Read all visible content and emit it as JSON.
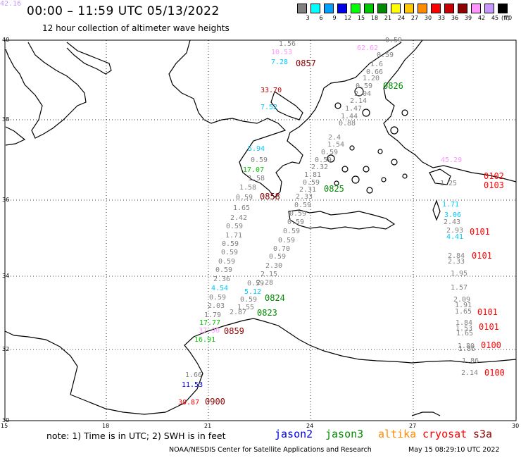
{
  "title": "00:00 – 11:59 UTC 05/13/2022",
  "subtitle": "12 hour collection of altimeter wave heights",
  "legend": {
    "unit": "(ft)",
    "bins": [
      {
        "label": "3",
        "color": "#808080"
      },
      {
        "label": "6",
        "color": "#00ffff"
      },
      {
        "label": "9",
        "color": "#00a0ff"
      },
      {
        "label": "12",
        "color": "#0000e6"
      },
      {
        "label": "15",
        "color": "#00ff00"
      },
      {
        "label": "18",
        "color": "#00c800"
      },
      {
        "label": "21",
        "color": "#008c00"
      },
      {
        "label": "24",
        "color": "#ffff00"
      },
      {
        "label": "27",
        "color": "#ffc800"
      },
      {
        "label": "30",
        "color": "#ff8c00"
      },
      {
        "label": "33",
        "color": "#ff0000"
      },
      {
        "label": "36",
        "color": "#c80000"
      },
      {
        "label": "39",
        "color": "#8c0000"
      },
      {
        "label": "42",
        "color": "#ff96ff"
      },
      {
        "label": "45",
        "color": "#c896ff"
      },
      {
        "label": "70",
        "color": "#000000"
      }
    ]
  },
  "axes": {
    "lat_labels": [
      "40",
      "38",
      "36",
      "34",
      "32",
      "30"
    ],
    "lon_labels": [
      "15",
      "18",
      "21",
      "24",
      "27",
      "30"
    ]
  },
  "observations": [
    {
      "text": "1.56",
      "color": "#808080"
    },
    {
      "text": "10.53",
      "color": "#ff96ff"
    },
    {
      "text": "7.28",
      "color": "#00c8ff"
    },
    {
      "text": "33.70",
      "color": "#c80000"
    },
    {
      "text": "7.52",
      "color": "#00c8ff"
    },
    {
      "text": "0.59",
      "color": "#808080"
    },
    {
      "text": "62.62",
      "color": "#ff96ff"
    },
    {
      "text": "0.59",
      "color": "#808080"
    },
    {
      "text": "1.6",
      "color": "#808080"
    },
    {
      "text": "0.66",
      "color": "#808080"
    },
    {
      "text": "1.20",
      "color": "#808080"
    },
    {
      "text": "0.59",
      "color": "#808080"
    },
    {
      "text": "2.04",
      "color": "#808080"
    },
    {
      "text": "2.14",
      "color": "#808080"
    },
    {
      "text": "1.47",
      "color": "#808080"
    },
    {
      "text": "1.44",
      "color": "#808080"
    },
    {
      "text": "0.88",
      "color": "#808080"
    },
    {
      "text": "2.4",
      "color": "#808080"
    },
    {
      "text": "1.54",
      "color": "#808080"
    },
    {
      "text": "0.59",
      "color": "#808080"
    },
    {
      "text": "0.59",
      "color": "#808080"
    },
    {
      "text": "2.32",
      "color": "#808080"
    },
    {
      "text": "1.81",
      "color": "#808080"
    },
    {
      "text": "0.59",
      "color": "#808080"
    },
    {
      "text": "2.31",
      "color": "#808080"
    },
    {
      "text": "2.33",
      "color": "#808080"
    },
    {
      "text": "5.94",
      "color": "#00c8ff"
    },
    {
      "text": "0.59",
      "color": "#808080"
    },
    {
      "text": "17.07",
      "color": "#00c800"
    },
    {
      "text": "1.58",
      "color": "#808080"
    },
    {
      "text": "1.58",
      "color": "#808080"
    },
    {
      "text": "0.59",
      "color": "#808080"
    },
    {
      "text": "1.65",
      "color": "#808080"
    },
    {
      "text": "2.42",
      "color": "#808080"
    },
    {
      "text": "0.59",
      "color": "#808080"
    },
    {
      "text": "1.71",
      "color": "#808080"
    },
    {
      "text": "0.59",
      "color": "#808080"
    },
    {
      "text": "0.59",
      "color": "#808080"
    },
    {
      "text": "0.59",
      "color": "#808080"
    },
    {
      "text": "0.59",
      "color": "#808080"
    },
    {
      "text": "2.36",
      "color": "#808080"
    },
    {
      "text": "4.54",
      "color": "#00c8ff"
    },
    {
      "text": "0.59",
      "color": "#808080"
    },
    {
      "text": "2.03",
      "color": "#808080"
    },
    {
      "text": "1.79",
      "color": "#808080"
    },
    {
      "text": "17.77",
      "color": "#00c800"
    },
    {
      "text": "37.90",
      "color": "#ff96ff"
    },
    {
      "text": "16.91",
      "color": "#00c800"
    },
    {
      "text": "0.59",
      "color": "#808080"
    },
    {
      "text": "0.59",
      "color": "#808080"
    },
    {
      "text": "0.59",
      "color": "#808080"
    },
    {
      "text": "0.59",
      "color": "#808080"
    },
    {
      "text": "0.59",
      "color": "#808080"
    },
    {
      "text": "0.70",
      "color": "#808080"
    },
    {
      "text": "0.59",
      "color": "#808080"
    },
    {
      "text": "2.30",
      "color": "#808080"
    },
    {
      "text": "2.15",
      "color": "#808080"
    },
    {
      "text": "2.28",
      "color": "#808080"
    },
    {
      "text": "0.59",
      "color": "#808080"
    },
    {
      "text": "5.12",
      "color": "#00c8ff"
    },
    {
      "text": "0.59",
      "color": "#808080"
    },
    {
      "text": "1.55",
      "color": "#808080"
    },
    {
      "text": "2.87",
      "color": "#808080"
    },
    {
      "text": "45.29",
      "color": "#ff96ff"
    },
    {
      "text": "1.25",
      "color": "#808080"
    },
    {
      "text": "1.71",
      "color": "#00c8ff"
    },
    {
      "text": "3.06",
      "color": "#00c8ff"
    },
    {
      "text": "2.43",
      "color": "#808080"
    },
    {
      "text": "2.93",
      "color": "#808080"
    },
    {
      "text": "4.41",
      "color": "#00c8ff"
    },
    {
      "text": "2.84",
      "color": "#808080"
    },
    {
      "text": "2.33",
      "color": "#808080"
    },
    {
      "text": "1.95",
      "color": "#808080"
    },
    {
      "text": "1.57",
      "color": "#808080"
    },
    {
      "text": "2.09",
      "color": "#808080"
    },
    {
      "text": "1.91",
      "color": "#808080"
    },
    {
      "text": "1.65",
      "color": "#808080"
    },
    {
      "text": "1.84",
      "color": "#808080"
    },
    {
      "text": "1.53",
      "color": "#808080"
    },
    {
      "text": "1.65",
      "color": "#808080"
    },
    {
      "text": "1.80",
      "color": "#808080"
    },
    {
      "text": "1.86",
      "color": "#808080"
    },
    {
      "text": "1.86",
      "color": "#808080"
    },
    {
      "text": "2.14",
      "color": "#808080"
    },
    {
      "text": "1.66",
      "color": "#808080"
    },
    {
      "text": "11.53",
      "color": "#0000e6"
    },
    {
      "text": "30.87",
      "color": "#ff0000"
    },
    {
      "text": "42.16",
      "color": "#c896ff"
    }
  ],
  "passes": [
    {
      "text": "0857",
      "color": "#8c0000"
    },
    {
      "text": "0826",
      "color": "#008c00"
    },
    {
      "text": "0858",
      "color": "#8c0000"
    },
    {
      "text": "0825",
      "color": "#008c00"
    },
    {
      "text": "0824",
      "color": "#008c00"
    },
    {
      "text": "0823",
      "color": "#008c00"
    },
    {
      "text": "0859",
      "color": "#8c0000"
    },
    {
      "text": "0900",
      "color": "#8c0000"
    },
    {
      "text": "0102",
      "color": "#ff0000"
    },
    {
      "text": "0103",
      "color": "#ff0000"
    },
    {
      "text": "0101",
      "color": "#ff0000"
    },
    {
      "text": "0101",
      "color": "#ff0000"
    },
    {
      "text": "0101",
      "color": "#ff0000"
    },
    {
      "text": "0101",
      "color": "#ff0000"
    },
    {
      "text": "0100",
      "color": "#ff0000"
    },
    {
      "text": "0100",
      "color": "#ff0000"
    }
  ],
  "note": "note:  1) Time is in UTC;  2) SWH is in feet",
  "missions": [
    {
      "name": "jason2",
      "color": "#0000e6"
    },
    {
      "name": "jason3",
      "color": "#008c00"
    },
    {
      "name": "altika",
      "color": "#ff8c00"
    },
    {
      "name": "cryosat",
      "color": "#ff0000"
    },
    {
      "name": "s3a",
      "color": "#8c0000"
    }
  ],
  "footer": {
    "left": "NOAA/NESDIS Center for Satellite Applications and Research",
    "right": "May 15 08:29:10 UTC 2022"
  }
}
